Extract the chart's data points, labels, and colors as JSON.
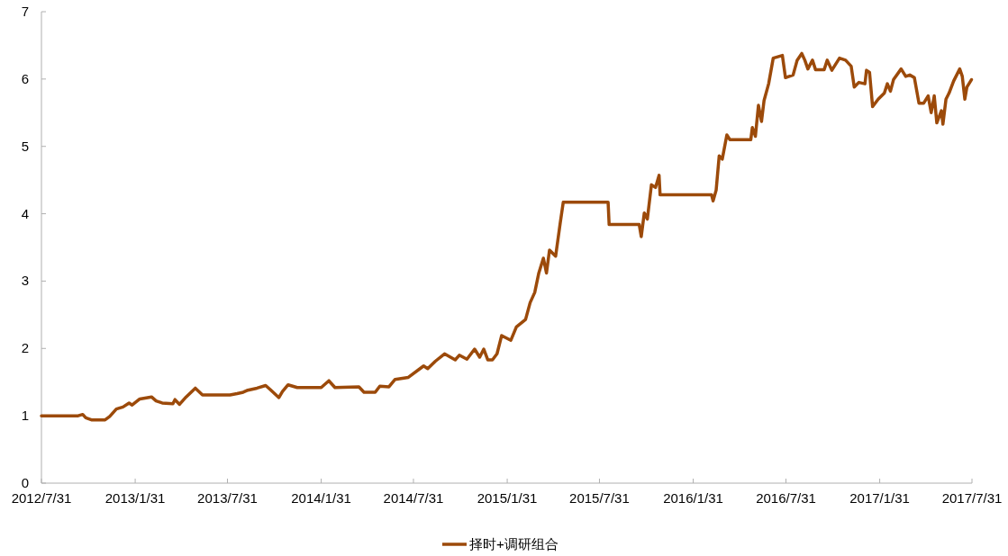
{
  "chart_data": {
    "type": "line",
    "x": [
      "2012-07-31",
      "2012-10-11",
      "2012-10-20",
      "2012-10-26",
      "2012-11-06",
      "2012-12-03",
      "2012-12-12",
      "2012-12-25",
      "2013-01-07",
      "2013-01-19",
      "2013-01-25",
      "2013-02-09",
      "2013-03-04",
      "2013-03-13",
      "2013-03-25",
      "2013-04-15",
      "2013-04-19",
      "2013-04-28",
      "2013-05-11",
      "2013-05-29",
      "2013-06-12",
      "2013-08-05",
      "2013-08-19",
      "2013-08-31",
      "2013-09-09",
      "2013-09-27",
      "2013-10-14",
      "2013-10-23",
      "2013-11-09",
      "2013-11-16",
      "2013-11-27",
      "2013-12-15",
      "2014-01-31",
      "2014-02-15",
      "2014-02-27",
      "2014-04-15",
      "2014-04-25",
      "2014-05-17",
      "2014-05-26",
      "2014-06-13",
      "2014-06-25",
      "2014-07-21",
      "2014-08-20",
      "2014-08-28",
      "2014-09-12",
      "2014-09-30",
      "2014-10-21",
      "2014-10-29",
      "2014-11-13",
      "2014-11-28",
      "2014-12-08",
      "2014-12-16",
      "2014-12-24",
      "2015-01-02",
      "2015-01-11",
      "2015-01-20",
      "2015-02-07",
      "2015-02-18",
      "2015-03-08",
      "2015-03-17",
      "2015-03-26",
      "2015-04-03",
      "2015-04-12",
      "2015-04-18",
      "2015-04-24",
      "2015-05-06",
      "2015-05-15",
      "2015-05-21",
      "2015-08-17",
      "2015-08-19",
      "2015-10-17",
      "2015-10-21",
      "2015-10-27",
      "2015-11-02",
      "2015-11-10",
      "2015-11-18",
      "2015-11-25",
      "2015-11-27",
      "2016-03-07",
      "2016-03-10",
      "2016-03-16",
      "2016-03-22",
      "2016-03-28",
      "2016-04-06",
      "2016-04-12",
      "2016-05-23",
      "2016-05-26",
      "2016-06-01",
      "2016-06-07",
      "2016-06-13",
      "2016-06-18",
      "2016-06-27",
      "2016-07-06",
      "2016-07-24",
      "2016-07-30",
      "2016-08-14",
      "2016-08-22",
      "2016-08-31",
      "2016-09-06",
      "2016-09-12",
      "2016-09-21",
      "2016-09-27",
      "2016-10-14",
      "2016-10-20",
      "2016-10-29",
      "2016-11-13",
      "2016-11-25",
      "2016-12-06",
      "2016-12-12",
      "2016-12-21",
      "2017-01-02",
      "2017-01-05",
      "2017-01-11",
      "2017-01-17",
      "2017-01-28",
      "2017-02-09",
      "2017-02-15",
      "2017-02-21",
      "2017-02-27",
      "2017-03-14",
      "2017-03-23",
      "2017-03-31",
      "2017-04-09",
      "2017-04-18",
      "2017-04-27",
      "2017-05-06",
      "2017-05-12",
      "2017-05-18",
      "2017-05-23",
      "2017-06-01",
      "2017-06-04",
      "2017-06-10",
      "2017-06-16",
      "2017-06-25",
      "2017-07-07",
      "2017-07-12",
      "2017-07-17",
      "2017-07-21",
      "2017-07-30"
    ],
    "series": [
      {
        "name": "择时+调研组合",
        "color": "#9c4a0a",
        "values": [
          1.0,
          1.0,
          1.02,
          0.97,
          0.94,
          0.94,
          0.99,
          1.1,
          1.13,
          1.19,
          1.16,
          1.25,
          1.28,
          1.22,
          1.19,
          1.18,
          1.24,
          1.17,
          1.28,
          1.41,
          1.31,
          1.31,
          1.33,
          1.35,
          1.38,
          1.41,
          1.45,
          1.39,
          1.27,
          1.36,
          1.46,
          1.42,
          1.42,
          1.52,
          1.42,
          1.43,
          1.35,
          1.35,
          1.44,
          1.43,
          1.54,
          1.57,
          1.74,
          1.7,
          1.81,
          1.92,
          1.83,
          1.9,
          1.84,
          1.99,
          1.87,
          1.99,
          1.83,
          1.83,
          1.92,
          2.19,
          2.12,
          2.32,
          2.43,
          2.68,
          2.83,
          3.12,
          3.34,
          3.12,
          3.46,
          3.37,
          3.86,
          4.17,
          4.17,
          3.84,
          3.84,
          3.66,
          4.01,
          3.92,
          4.43,
          4.39,
          4.57,
          4.28,
          4.28,
          4.19,
          4.35,
          4.86,
          4.81,
          5.17,
          5.1,
          5.1,
          5.28,
          5.15,
          5.61,
          5.37,
          5.68,
          5.93,
          6.31,
          6.35,
          6.02,
          6.06,
          6.28,
          6.38,
          6.28,
          6.15,
          6.28,
          6.14,
          6.14,
          6.28,
          6.13,
          6.31,
          6.28,
          6.19,
          5.88,
          5.95,
          5.93,
          6.13,
          6.1,
          5.59,
          5.7,
          5.79,
          5.93,
          5.82,
          5.99,
          6.15,
          6.04,
          6.06,
          6.02,
          5.64,
          5.64,
          5.75,
          5.5,
          5.75,
          5.35,
          5.53,
          5.33,
          5.7,
          5.79,
          5.97,
          6.15,
          6.04,
          5.7,
          5.88,
          5.99
        ]
      }
    ],
    "xlim": [
      "2012-07-31",
      "2017-07-31"
    ],
    "xticks": [
      {
        "value": "2012-07-31",
        "label": "2012/7/31"
      },
      {
        "value": "2013-01-31",
        "label": "2013/1/31"
      },
      {
        "value": "2013-07-31",
        "label": "2013/7/31"
      },
      {
        "value": "2014-01-31",
        "label": "2014/1/31"
      },
      {
        "value": "2014-07-31",
        "label": "2014/7/31"
      },
      {
        "value": "2015-01-31",
        "label": "2015/1/31"
      },
      {
        "value": "2015-07-31",
        "label": "2015/7/31"
      },
      {
        "value": "2016-01-31",
        "label": "2016/1/31"
      },
      {
        "value": "2016-07-31",
        "label": "2016/7/31"
      },
      {
        "value": "2017-01-31",
        "label": "2017/1/31"
      },
      {
        "value": "2017-07-31",
        "label": "2017/7/31"
      }
    ],
    "ylim": [
      0,
      7
    ],
    "yticks": [
      0,
      1,
      2,
      3,
      4,
      5,
      6,
      7
    ],
    "legend": "bottom"
  }
}
